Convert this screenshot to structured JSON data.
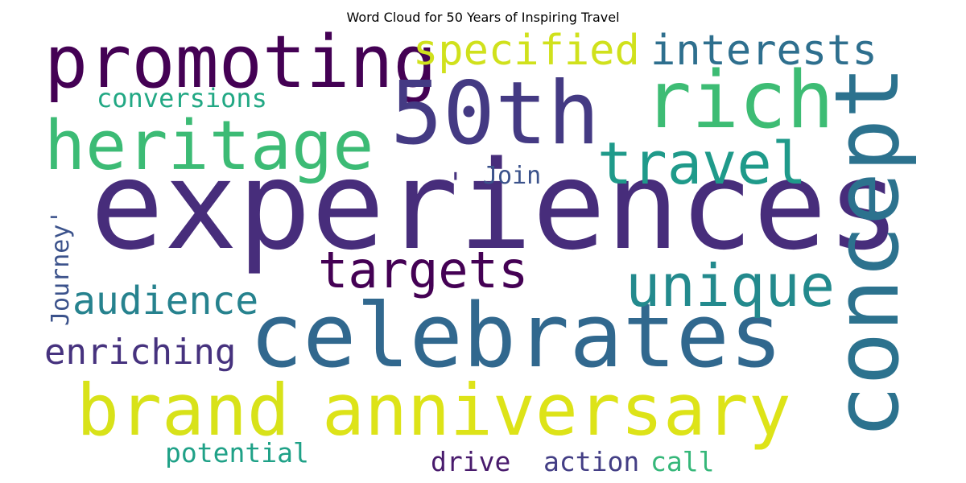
{
  "chart_data": {
    "type": "wordcloud",
    "title": "Word Cloud for 50 Years of Inspiring Travel",
    "colormap": "viridis",
    "background": "#ffffff",
    "words": [
      {
        "text": "experiences",
        "color": "#472d7b"
      },
      {
        "text": "celebrates",
        "color": "#31688e"
      },
      {
        "text": "anniversary",
        "color": "#dde318"
      },
      {
        "text": "brand",
        "color": "#d8e219"
      },
      {
        "text": "promoting",
        "color": "#440154"
      },
      {
        "text": "50th",
        "color": "#443a83"
      },
      {
        "text": "concept",
        "color": "#2c728e"
      },
      {
        "text": "rich",
        "color": "#3dbc74"
      },
      {
        "text": "heritage",
        "color": "#3cbb75"
      },
      {
        "text": "travel",
        "color": "#1f9a8a"
      },
      {
        "text": "unique",
        "color": "#238a8d"
      },
      {
        "text": "targets",
        "color": "#440154"
      },
      {
        "text": "specified",
        "color": "#d0e11c"
      },
      {
        "text": "interests",
        "color": "#2e6f8e"
      },
      {
        "text": "audience",
        "color": "#26828e"
      },
      {
        "text": "enriching",
        "color": "#46327e"
      },
      {
        "text": "conversions",
        "color": "#22a884"
      },
      {
        "text": "potential",
        "color": "#1fa187"
      },
      {
        "text": "drive",
        "color": "#481a6c"
      },
      {
        "text": "action",
        "color": "#433e85"
      },
      {
        "text": "call",
        "color": "#35b779"
      },
      {
        "text": "Join",
        "color": "#3b528b"
      },
      {
        "text": "Journey'",
        "color": "#3b528b"
      },
      {
        "text": "'",
        "color": "#46327e"
      }
    ]
  }
}
